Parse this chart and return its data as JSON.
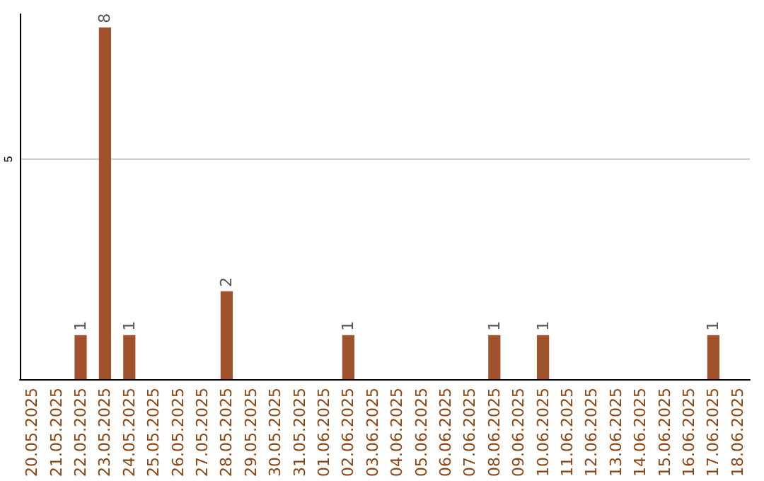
{
  "chart_data": {
    "type": "bar",
    "categories": [
      "20.05.2025",
      "21.05.2025",
      "22.05.2025",
      "23.05.2025",
      "24.05.2025",
      "25.05.2025",
      "26.05.2025",
      "27.05.2025",
      "28.05.2025",
      "29.05.2025",
      "30.05.2025",
      "31.05.2025",
      "01.06.2025",
      "02.06.2025",
      "03.06.2025",
      "04.06.2025",
      "05.06.2025",
      "06.06.2025",
      "07.06.2025",
      "08.06.2025",
      "09.06.2025",
      "10.06.2025",
      "11.06.2025",
      "12.06.2025",
      "13.06.2025",
      "14.06.2025",
      "15.06.2025",
      "16.06.2025",
      "17.06.2025",
      "18.06.2025"
    ],
    "values": [
      0,
      0,
      1,
      8,
      1,
      0,
      0,
      0,
      2,
      0,
      0,
      0,
      0,
      1,
      0,
      0,
      0,
      0,
      0,
      1,
      0,
      1,
      0,
      0,
      0,
      0,
      0,
      0,
      1,
      0
    ],
    "value_labels": [
      null,
      null,
      "1",
      "8",
      "1",
      null,
      null,
      null,
      "2",
      null,
      null,
      null,
      null,
      "1",
      null,
      null,
      null,
      null,
      null,
      "1",
      null,
      "1",
      null,
      null,
      null,
      null,
      null,
      null,
      "1",
      null
    ],
    "color": "#a0522d",
    "ylim": [
      0,
      8.3
    ],
    "yticks": [
      5
    ],
    "grid": "y"
  }
}
